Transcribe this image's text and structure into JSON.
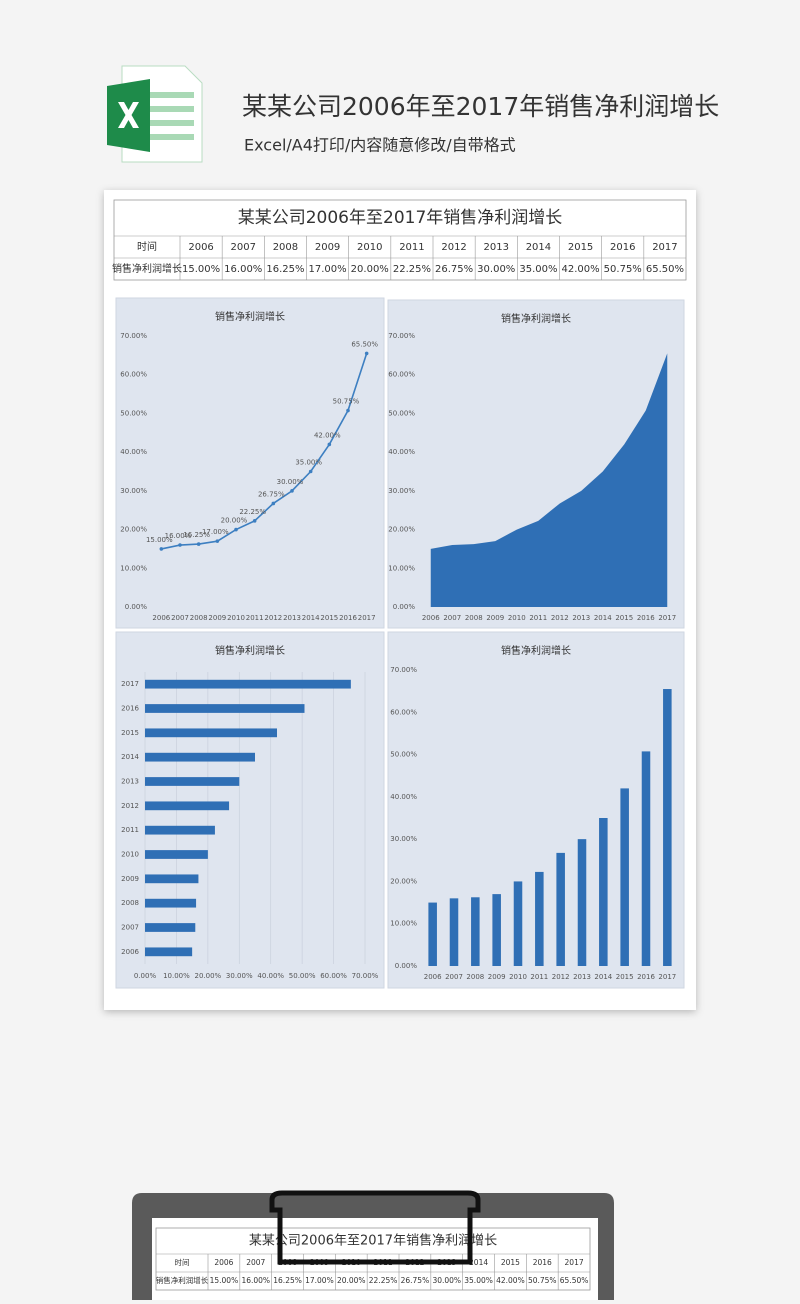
{
  "header": {
    "title": "某某公司2006年至2017年销售净利润增长",
    "subtitle": "Excel/A4打印/内容随意修改/自带格式"
  },
  "table": {
    "title": "某某公司2006年至2017年销售净利润增长",
    "header": [
      "时间",
      "2006",
      "2007",
      "2008",
      "2009",
      "2010",
      "2011",
      "2012",
      "2013",
      "2014",
      "2015",
      "2016",
      "2017"
    ],
    "row": [
      "销售净利润增长",
      "15.00%",
      "16.00%",
      "16.25%",
      "17.00%",
      "20.00%",
      "22.25%",
      "26.75%",
      "30.00%",
      "35.00%",
      "42.00%",
      "50.75%",
      "65.50%"
    ]
  },
  "charts": [
    {
      "type": "line",
      "title": "销售净利润增长",
      "color": "#3d7fc1",
      "grid": false,
      "categories": [
        "2006",
        "2007",
        "2008",
        "2009",
        "2010",
        "2011",
        "2012",
        "2013",
        "2014",
        "2015",
        "2016",
        "2017"
      ],
      "values": [
        15,
        16,
        16.25,
        17,
        20,
        22.25,
        26.75,
        30,
        35,
        42,
        50.75,
        65.5
      ],
      "value_labels": [
        "15.00%",
        "16.00%",
        "16.25%",
        "17.00%",
        "20.00%",
        "22.25%",
        "26.75%",
        "30.00%",
        "35.00%",
        "42.00%",
        "50.75%",
        "65.50%"
      ],
      "ylim": [
        0,
        70
      ],
      "yticks": [
        {
          "value": 0,
          "label": "0.00%"
        },
        {
          "value": 10,
          "label": "10.00%"
        },
        {
          "value": 20,
          "label": "20.00%"
        },
        {
          "value": 30,
          "label": "30.00%"
        },
        {
          "value": 40,
          "label": "40.00%"
        },
        {
          "value": 50,
          "label": "50.00%"
        },
        {
          "value": 60,
          "label": "60.00%"
        },
        {
          "value": 70,
          "label": "70.00%"
        }
      ]
    },
    {
      "type": "area",
      "title": "销售净利润增长",
      "color": "#2f6fb5",
      "grid": false,
      "categories": [
        "2006",
        "2007",
        "2008",
        "2009",
        "2010",
        "2011",
        "2012",
        "2013",
        "2014",
        "2015",
        "2016",
        "2017"
      ],
      "values": [
        15,
        16,
        16.25,
        17,
        20,
        22.25,
        26.75,
        30,
        35,
        42,
        50.75,
        65.5
      ],
      "ylim": [
        0,
        70
      ],
      "yticks": [
        {
          "value": 0,
          "label": "0.00%"
        },
        {
          "value": 10,
          "label": "10.00%"
        },
        {
          "value": 20,
          "label": "20.00%"
        },
        {
          "value": 30,
          "label": "30.00%"
        },
        {
          "value": 40,
          "label": "40.00%"
        },
        {
          "value": 50,
          "label": "50.00%"
        },
        {
          "value": 60,
          "label": "60.00%"
        },
        {
          "value": 70,
          "label": "70.00%"
        }
      ]
    },
    {
      "type": "barh",
      "title": "销售净利润增长",
      "color": "#2f6fb5",
      "grid": true,
      "categories": [
        "2006",
        "2007",
        "2008",
        "2009",
        "2010",
        "2011",
        "2012",
        "2013",
        "2014",
        "2015",
        "2016",
        "2017"
      ],
      "values": [
        15,
        16,
        16.25,
        17,
        20,
        22.25,
        26.75,
        30,
        35,
        42,
        50.75,
        65.5
      ],
      "xlim": [
        0,
        70
      ],
      "xticks": [
        {
          "value": 0,
          "label": "0.00%"
        },
        {
          "value": 10,
          "label": "10.00%"
        },
        {
          "value": 20,
          "label": "20.00%"
        },
        {
          "value": 30,
          "label": "30.00%"
        },
        {
          "value": 40,
          "label": "40.00%"
        },
        {
          "value": 50,
          "label": "50.00%"
        },
        {
          "value": 60,
          "label": "60.00%"
        },
        {
          "value": 70,
          "label": "70.00%"
        }
      ]
    },
    {
      "type": "bar",
      "title": "销售净利润增长",
      "color": "#2f6fb5",
      "grid": false,
      "categories": [
        "2006",
        "2007",
        "2008",
        "2009",
        "2010",
        "2011",
        "2012",
        "2013",
        "2014",
        "2015",
        "2016",
        "2017"
      ],
      "values": [
        15,
        16,
        16.25,
        17,
        20,
        22.25,
        26.75,
        30,
        35,
        42,
        50.75,
        65.5
      ],
      "ylim": [
        0,
        70
      ],
      "yticks": [
        {
          "value": 0,
          "label": "0.00%"
        },
        {
          "value": 10,
          "label": "10.00%"
        },
        {
          "value": 20,
          "label": "20.00%"
        },
        {
          "value": 30,
          "label": "30.00%"
        },
        {
          "value": 40,
          "label": "40.00%"
        },
        {
          "value": 50,
          "label": "50.00%"
        },
        {
          "value": 60,
          "label": "60.00%"
        },
        {
          "value": 70,
          "label": "70.00%"
        }
      ]
    }
  ]
}
